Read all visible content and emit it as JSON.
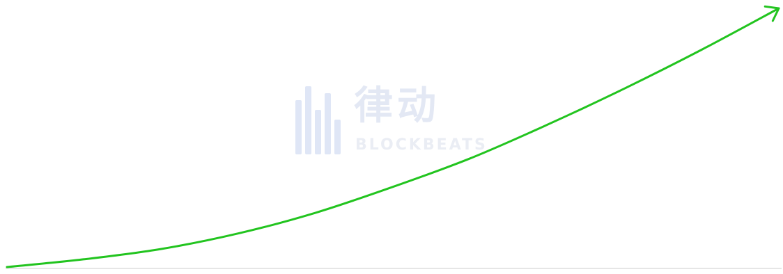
{
  "watermark": {
    "chinese": "律动",
    "english": "BLOCKBEATS"
  },
  "colors": {
    "curve": "#22c41f",
    "baseline": "#e6e6e6",
    "watermark": "#e3e8f4"
  },
  "chart_data": {
    "type": "line",
    "title": "",
    "xlabel": "",
    "ylabel": "",
    "grid": false,
    "legend": "none",
    "arrowhead": true,
    "xlim": [
      0,
      1
    ],
    "ylim": [
      0,
      1
    ],
    "series": [
      {
        "values": [
          {
            "x": 0.0,
            "y": 0.0
          },
          {
            "x": 0.1,
            "y": 0.03
          },
          {
            "x": 0.2,
            "y": 0.07
          },
          {
            "x": 0.3,
            "y": 0.13
          },
          {
            "x": 0.4,
            "y": 0.21
          },
          {
            "x": 0.5,
            "y": 0.31
          },
          {
            "x": 0.6,
            "y": 0.42
          },
          {
            "x": 0.7,
            "y": 0.55
          },
          {
            "x": 0.8,
            "y": 0.69
          },
          {
            "x": 0.9,
            "y": 0.84
          },
          {
            "x": 1.0,
            "y": 1.0
          }
        ]
      }
    ]
  }
}
